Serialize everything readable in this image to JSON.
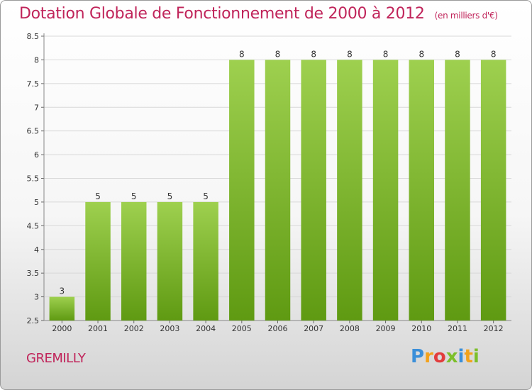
{
  "header": {
    "title": "Dotation Globale de Fonctionnement de 2000 à 2012",
    "subtitle": "(en milliers d'€)"
  },
  "footer": {
    "commune": "GREMILLY",
    "brand": "Proxiti"
  },
  "colors": {
    "title": "#c0245a",
    "bar_light": "#9ed04f",
    "bar_dark": "#5f9a12"
  },
  "chart_data": {
    "type": "bar",
    "title": "Dotation Globale de Fonctionnement de 2000 à 2012",
    "subtitle": "(en milliers d'€)",
    "categories": [
      "2000",
      "2001",
      "2002",
      "2003",
      "2004",
      "2005",
      "2006",
      "2007",
      "2008",
      "2009",
      "2010",
      "2011",
      "2012"
    ],
    "values": [
      3,
      5,
      5,
      5,
      5,
      8,
      8,
      8,
      8,
      8,
      8,
      8,
      8
    ],
    "data_labels": [
      "3",
      "5",
      "5",
      "5",
      "5",
      "8",
      "8",
      "8",
      "8",
      "8",
      "8",
      "8",
      "8"
    ],
    "y_ticks": [
      "2.5",
      "3",
      "3.5",
      "4",
      "4.5",
      "5",
      "5.5",
      "6",
      "6.5",
      "7",
      "7.5",
      "8",
      "8.5"
    ],
    "ylim": [
      2.5,
      8.5
    ],
    "grid": true,
    "xlabel": "",
    "ylabel": ""
  }
}
